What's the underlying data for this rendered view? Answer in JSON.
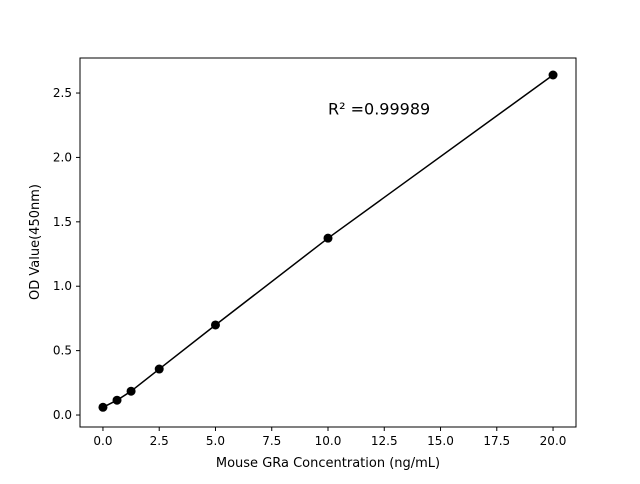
{
  "chart_data": {
    "type": "line",
    "title": "",
    "xlabel": "Mouse GRa Concentration (ng/mL)",
    "ylabel": "OD Value(450nm)",
    "x": [
      0,
      0.625,
      1.25,
      2.5,
      5,
      10,
      20
    ],
    "values": [
      0.06,
      0.115,
      0.185,
      0.357,
      0.699,
      1.373,
      2.64
    ],
    "xlim": [
      -1.02,
      21.02
    ],
    "ylim": [
      -0.093,
      2.772
    ],
    "xticks": [
      "0.0",
      "2.5",
      "5.0",
      "7.5",
      "10.0",
      "12.5",
      "15.0",
      "17.5",
      "20.0"
    ],
    "yticks": [
      "0.0",
      "0.5",
      "1.0",
      "1.5",
      "2.0",
      "2.5"
    ],
    "annotation": {
      "text": "R² =0.99989",
      "x": 10,
      "y": 2.38
    },
    "grid": false,
    "markers": true,
    "color": "#000000"
  }
}
